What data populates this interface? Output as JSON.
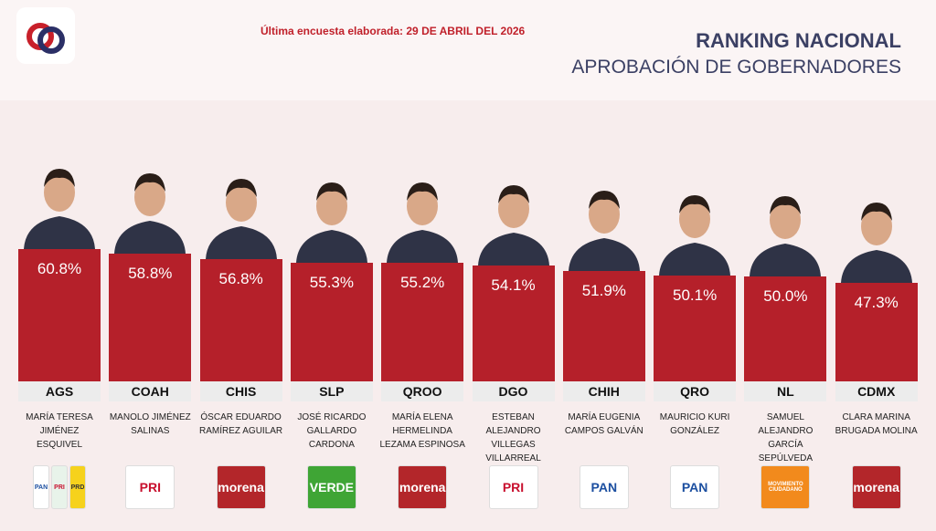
{
  "chart_data": {
    "type": "bar",
    "note": "Última encuesta elaborada: 29 DE ABRIL DEL 2026",
    "title": "RANKING NACIONAL",
    "subtitle": "APROBACIÓN DE GOBERNADORES",
    "color": "#b5202a",
    "categories": [
      "AGS",
      "COAH",
      "CHIS",
      "SLP",
      "QROO",
      "DGO",
      "CHIH",
      "QRO",
      "NL",
      "CDMX"
    ],
    "values": [
      60.8,
      58.8,
      56.8,
      55.3,
      55.2,
      54.1,
      51.9,
      50.1,
      50.0,
      47.3
    ],
    "value_labels": [
      "60.8%",
      "58.8%",
      "56.8%",
      "55.3%",
      "55.2%",
      "54.1%",
      "51.9%",
      "50.1%",
      "50.0%",
      "47.3%"
    ],
    "names": [
      "MARÍA TERESA JIMÉNEZ ESQUIVEL",
      "MANOLO JIMÉNEZ SALINAS",
      "ÓSCAR EDUARDO RAMÍREZ AGUILAR",
      "JOSÉ RICARDO GALLARDO CARDONA",
      "MARÍA ELENA HERMELINDA LEZAMA ESPINOSA",
      "ESTEBAN ALEJANDRO VILLEGAS VILLARREAL",
      "MARÍA EUGENIA CAMPOS GALVÁN",
      "MAURICIO KURI GONZÁLEZ",
      "SAMUEL ALEJANDRO GARCÍA SEPÚLVEDA",
      "CLARA MARINA BRUGADA MOLINA"
    ],
    "parties": [
      [
        {
          "text": "PAN",
          "color": "#1c4fa0",
          "bg": "#ffffff"
        },
        {
          "text": "PRI",
          "color": "#c8102e",
          "bg": "#e8f3ea"
        },
        {
          "text": "PRD",
          "color": "#333333",
          "bg": "#f6d21c"
        }
      ],
      [
        {
          "text": "PRI",
          "color": "#c8102e",
          "bg": "#ffffff"
        }
      ],
      [
        {
          "text": "morena",
          "color": "#ffffff",
          "bg": "#b3262a"
        }
      ],
      [
        {
          "text": "VERDE",
          "color": "#ffffff",
          "bg": "#3fa535"
        }
      ],
      [
        {
          "text": "morena",
          "color": "#ffffff",
          "bg": "#b3262a"
        }
      ],
      [
        {
          "text": "PRI",
          "color": "#c8102e",
          "bg": "#ffffff"
        }
      ],
      [
        {
          "text": "PAN",
          "color": "#1c4fa0",
          "bg": "#ffffff"
        }
      ],
      [
        {
          "text": "PAN",
          "color": "#1c4fa0",
          "bg": "#ffffff"
        }
      ],
      [
        {
          "text": "MOVIMIENTO CIUDADANO",
          "color": "#ffffff",
          "bg": "#f28a1c"
        }
      ],
      [
        {
          "text": "morena",
          "color": "#ffffff",
          "bg": "#b3262a"
        }
      ]
    ]
  }
}
